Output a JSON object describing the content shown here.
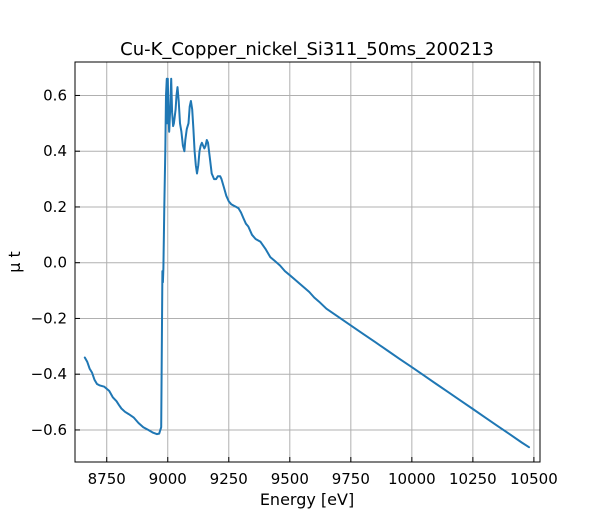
{
  "chart_data": {
    "type": "line",
    "title": "Cu-K_Copper_nickel_Si311_50ms_200213",
    "xlabel": "Energy [eV]",
    "ylabel": "μ t",
    "xlim": [
      8620,
      10525
    ],
    "ylim": [
      -0.715,
      0.72
    ],
    "grid": true,
    "x_ticks": [
      8750,
      9000,
      9250,
      9500,
      9750,
      10000,
      10250,
      10500
    ],
    "x_tick_labels": [
      "8750",
      "9000",
      "9250",
      "9500",
      "9750",
      "10000",
      "10250",
      "10500"
    ],
    "y_ticks": [
      -0.6,
      -0.4,
      -0.2,
      0.0,
      0.2,
      0.4,
      0.6
    ],
    "y_tick_labels": [
      "−0.6",
      "−0.4",
      "−0.2",
      "0.0",
      "0.2",
      "0.4",
      "0.6"
    ],
    "series": [
      {
        "color": "#1f77b4",
        "x": [
          8660,
          8670,
          8680,
          8690,
          8700,
          8710,
          8720,
          8740,
          8760,
          8775,
          8790,
          8800,
          8810,
          8825,
          8840,
          8860,
          8880,
          8900,
          8920,
          8940,
          8955,
          8965,
          8973,
          8978,
          8980,
          8982,
          8983,
          8984,
          8986,
          8988,
          8990,
          8993,
          8996,
          8998,
          9000,
          9003,
          9006,
          9010,
          9014,
          9018,
          9022,
          9025,
          9028,
          9032,
          9036,
          9040,
          9045,
          9050,
          9056,
          9062,
          9068,
          9072,
          9078,
          9085,
          9090,
          9095,
          9100,
          9105,
          9110,
          9115,
          9120,
          9125,
          9130,
          9135,
          9140,
          9145,
          9150,
          9155,
          9160,
          9165,
          9172,
          9180,
          9190,
          9198,
          9205,
          9210,
          9215,
          9220,
          9230,
          9240,
          9250,
          9260,
          9270,
          9280,
          9290,
          9300,
          9310,
          9320,
          9330,
          9345,
          9360,
          9380,
          9400,
          9420,
          9440,
          9460,
          9480,
          9500,
          9520,
          9540,
          9560,
          9580,
          9600,
          9620,
          9650,
          9700,
          9750,
          9800,
          9850,
          9900,
          9950,
          10000,
          10050,
          10100,
          10150,
          10200,
          10250,
          10300,
          10350,
          10400,
          10450,
          10480
        ],
        "y": [
          -0.34,
          -0.355,
          -0.38,
          -0.395,
          -0.42,
          -0.435,
          -0.44,
          -0.445,
          -0.46,
          -0.483,
          -0.497,
          -0.51,
          -0.523,
          -0.535,
          -0.543,
          -0.555,
          -0.575,
          -0.59,
          -0.6,
          -0.61,
          -0.615,
          -0.613,
          -0.59,
          -0.03,
          -0.07,
          -0.02,
          0.03,
          0.1,
          0.2,
          0.3,
          0.4,
          0.6,
          0.66,
          0.5,
          0.66,
          0.52,
          0.47,
          0.55,
          0.66,
          0.54,
          0.49,
          0.5,
          0.52,
          0.55,
          0.6,
          0.63,
          0.58,
          0.5,
          0.47,
          0.42,
          0.4,
          0.44,
          0.48,
          0.5,
          0.56,
          0.58,
          0.55,
          0.48,
          0.4,
          0.35,
          0.32,
          0.35,
          0.4,
          0.42,
          0.43,
          0.42,
          0.41,
          0.42,
          0.44,
          0.43,
          0.38,
          0.32,
          0.3,
          0.3,
          0.31,
          0.31,
          0.31,
          0.3,
          0.27,
          0.24,
          0.22,
          0.21,
          0.205,
          0.2,
          0.195,
          0.18,
          0.16,
          0.14,
          0.13,
          0.1,
          0.085,
          0.075,
          0.05,
          0.02,
          0.005,
          -0.01,
          -0.03,
          -0.045,
          -0.06,
          -0.075,
          -0.09,
          -0.105,
          -0.125,
          -0.14,
          -0.165,
          -0.195,
          -0.225,
          -0.255,
          -0.285,
          -0.315,
          -0.345,
          -0.375,
          -0.405,
          -0.435,
          -0.465,
          -0.495,
          -0.525,
          -0.555,
          -0.585,
          -0.615,
          -0.645,
          -0.662
        ]
      }
    ]
  }
}
